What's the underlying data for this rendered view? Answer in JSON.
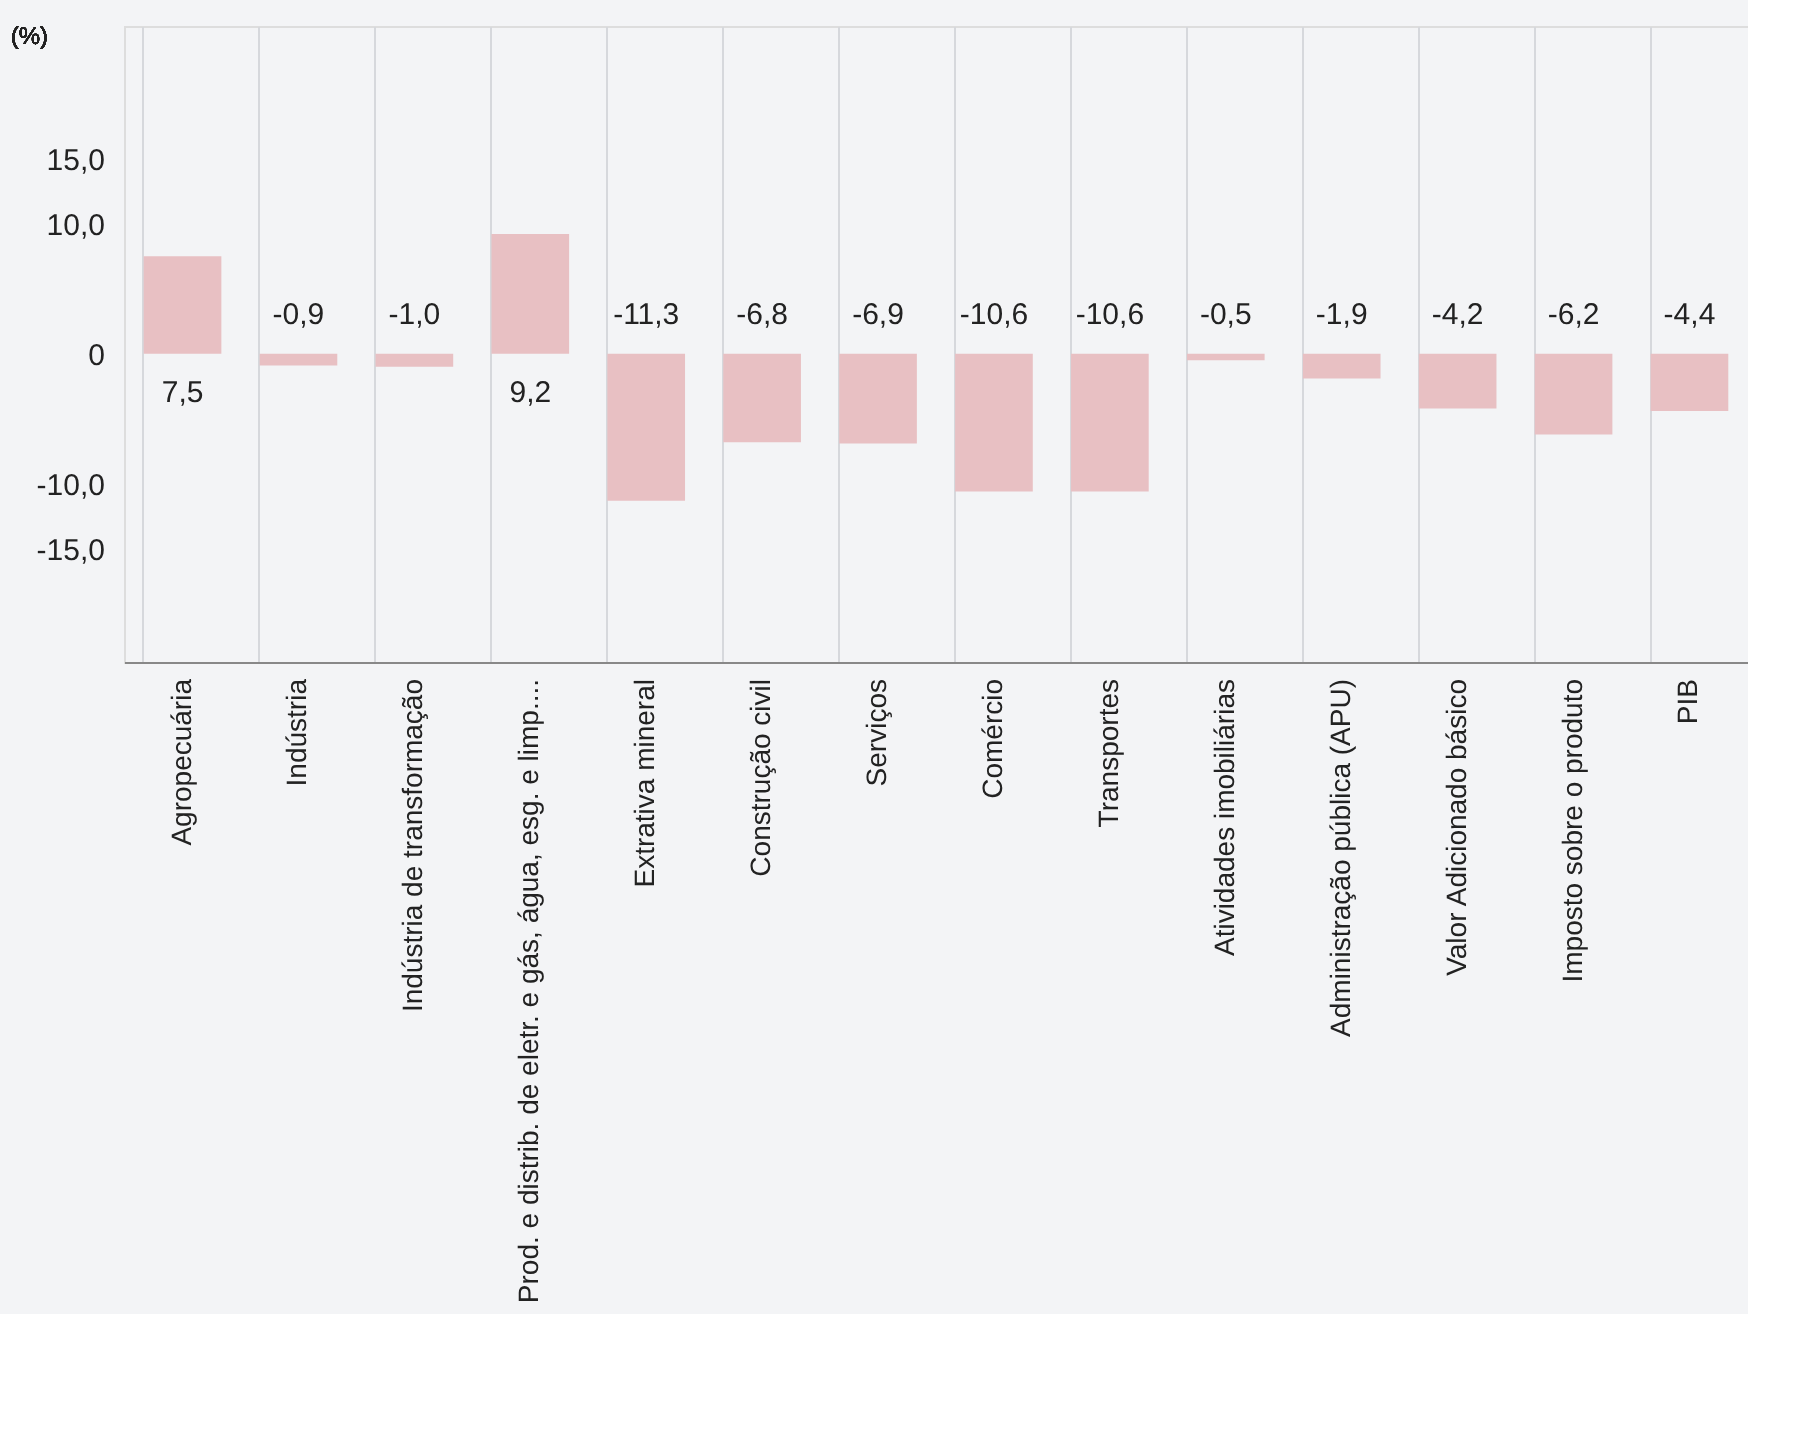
{
  "chart_data": {
    "type": "bar",
    "ylabel": "(%)",
    "categories": [
      "Agropecuária",
      "Indústria",
      "Indústria de transformação",
      "Prod. e distrib. de eletr. e gás, água, esg. e limp....",
      "Extrativa mineral",
      "Construção civil",
      "Serviços",
      "Comércio",
      "Transportes",
      "Atividades imobiliárias",
      "Administração pública (APU)",
      "Valor Adicionado básico",
      "Imposto sobre o produto",
      "PIB"
    ],
    "values": [
      7.5,
      -0.9,
      -1.0,
      9.2,
      -11.3,
      -6.8,
      -6.9,
      -10.6,
      -10.6,
      -0.5,
      -1.9,
      -4.2,
      -6.2,
      -4.4
    ],
    "value_labels": [
      "7,5",
      "-0,9",
      "-1,0",
      "9,2",
      "-11,3",
      "-6,8",
      "-6,9",
      "-10,6",
      "-10,6",
      "-0,5",
      "-1,9",
      "-4,2",
      "-6,2",
      "-4,4"
    ],
    "color": "#e8c0c3",
    "ylim": [
      -23.7,
      25.2
    ],
    "yticks": [
      {
        "value": 15,
        "label": "15,0"
      },
      {
        "value": 10,
        "label": "10,0"
      },
      0,
      {
        "value": -10,
        "label": "-10,0"
      },
      {
        "value": -15,
        "label": "-15,0"
      }
    ],
    "grid": "x"
  }
}
